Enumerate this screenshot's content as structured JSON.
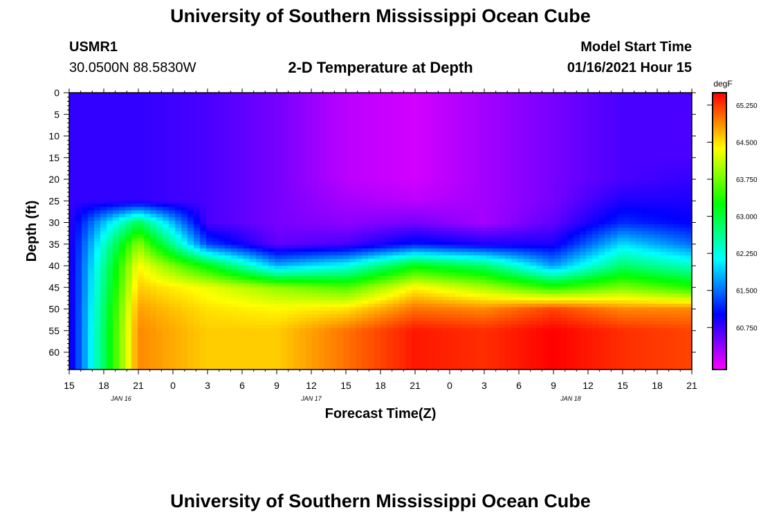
{
  "page": {
    "title_top": "University of Southern Mississippi Ocean Cube",
    "title_bottom": "University of Southern Mississippi Ocean Cube",
    "station": "USMR1",
    "location": "30.0500N 88.5830W",
    "model_start_label": "Model Start Time",
    "model_start_value": "01/16/2021 Hour 15"
  },
  "chart_data": {
    "type": "heatmap",
    "title": "2-D Temperature at Depth",
    "xlabel": "Forecast Time(Z)",
    "ylabel": "Depth (ft)",
    "x_range_hours": [
      0,
      54
    ],
    "x_ticks": [
      "15",
      "18",
      "21",
      "0",
      "3",
      "6",
      "9",
      "12",
      "15",
      "18",
      "21",
      "0",
      "3",
      "6",
      "9",
      "12",
      "15",
      "18",
      "21"
    ],
    "date_labels": [
      {
        "text": "JAN 16",
        "hour": 4.5
      },
      {
        "text": "JAN 17",
        "hour": 21
      },
      {
        "text": "JAN 18",
        "hour": 43.5
      }
    ],
    "y_range": [
      0,
      64
    ],
    "y_ticks": [
      0,
      5,
      10,
      15,
      20,
      25,
      30,
      35,
      40,
      45,
      50,
      55,
      60
    ],
    "colorbar": {
      "unit": "degF",
      "min": 59.9,
      "max": 65.5,
      "tick_values": [
        60.75,
        61.5,
        62.25,
        63.0,
        63.75,
        64.5,
        65.25
      ],
      "tick_labels": [
        "60.750",
        "61.500",
        "62.250",
        "63.000",
        "63.750",
        "64.500",
        "65.250"
      ]
    },
    "grid": {
      "hours": [
        0,
        6,
        12,
        18,
        24,
        30,
        36,
        42,
        48,
        54
      ],
      "depths": [
        0,
        5,
        10,
        15,
        20,
        25,
        30,
        35,
        40,
        45,
        50,
        55,
        60,
        64
      ],
      "values": [
        [
          60.8,
          60.8,
          60.8,
          60.8,
          60.8,
          60.8,
          60.8,
          60.8,
          60.8,
          60.8,
          60.8,
          60.8,
          60.8,
          60.8
        ],
        [
          60.8,
          60.8,
          60.8,
          60.8,
          60.8,
          60.8,
          62.9,
          63.9,
          64.4,
          64.6,
          64.8,
          64.9,
          64.9,
          64.9
        ],
        [
          60.7,
          60.7,
          60.7,
          60.7,
          60.7,
          60.7,
          60.7,
          61.3,
          63.2,
          64.3,
          64.5,
          64.6,
          64.6,
          64.6
        ],
        [
          60.5,
          60.5,
          60.5,
          60.5,
          60.5,
          60.5,
          60.5,
          60.6,
          61.8,
          63.9,
          64.4,
          64.6,
          64.6,
          64.6
        ],
        [
          60.2,
          60.2,
          60.2,
          60.2,
          60.2,
          60.3,
          60.4,
          60.7,
          62.2,
          63.6,
          64.5,
          65.0,
          65.0,
          65.0
        ],
        [
          60.1,
          60.1,
          60.1,
          60.1,
          60.1,
          60.2,
          60.5,
          61.1,
          63.2,
          64.4,
          65.0,
          65.4,
          65.4,
          65.4
        ],
        [
          60.3,
          60.3,
          60.3,
          60.3,
          60.3,
          60.3,
          60.3,
          60.9,
          62.8,
          64.0,
          64.9,
          65.3,
          65.3,
          65.3
        ],
        [
          60.5,
          60.5,
          60.5,
          60.5,
          60.5,
          60.5,
          60.6,
          60.9,
          61.7,
          63.4,
          65.2,
          65.5,
          65.5,
          65.5
        ],
        [
          60.7,
          60.7,
          60.7,
          60.7,
          60.7,
          60.9,
          61.2,
          62.0,
          62.8,
          63.8,
          64.9,
          65.3,
          65.3,
          65.3
        ],
        [
          60.7,
          60.7,
          60.7,
          60.7,
          60.8,
          60.9,
          61.0,
          61.5,
          62.4,
          63.4,
          64.9,
          65.2,
          65.2,
          65.2
        ]
      ]
    }
  }
}
